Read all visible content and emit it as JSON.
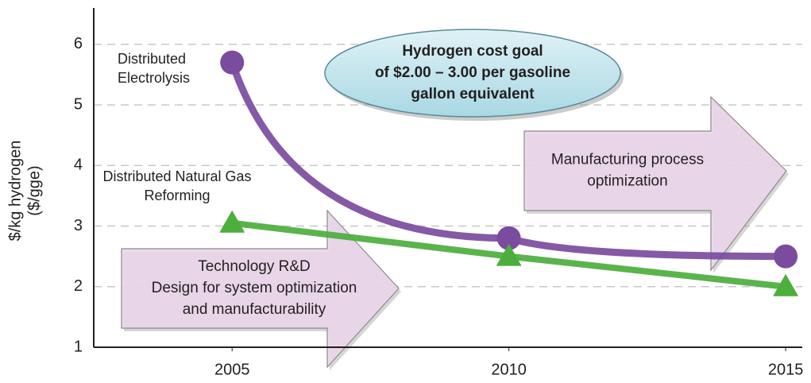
{
  "chart_data": {
    "type": "line",
    "y_label": "$/kg hydrogen",
    "y_label_2": "($/gge)",
    "x": [
      2005,
      2010,
      2015
    ],
    "xlim": [
      2002.5,
      2015.3
    ],
    "xticks": [
      2005,
      2010,
      2015
    ],
    "ylim": [
      1,
      6.6
    ],
    "yticks": [
      1,
      2,
      3,
      4,
      5,
      6
    ],
    "grid": true,
    "series": [
      {
        "name": "Distributed Electrolysis",
        "color": "#7b4b9e",
        "marker": "circle",
        "values": [
          5.7,
          2.8,
          2.5
        ]
      },
      {
        "name": "Distributed Natural Gas Reforming",
        "color": "#4cae3c",
        "marker": "triangle",
        "values": [
          3.05,
          2.5,
          2.0
        ]
      }
    ],
    "annotations": [
      {
        "shape": "ellipse",
        "lines": [
          "Hydrogen cost goal",
          "of $2.00 – 3.00 per gasoline",
          "gallon equivalent"
        ]
      },
      {
        "shape": "arrow",
        "lines": [
          "Technology R&D",
          "Design for system optimization",
          "and manufacturability"
        ]
      },
      {
        "shape": "arrow",
        "lines": [
          "Manufacturing process",
          "optimization"
        ]
      }
    ]
  }
}
